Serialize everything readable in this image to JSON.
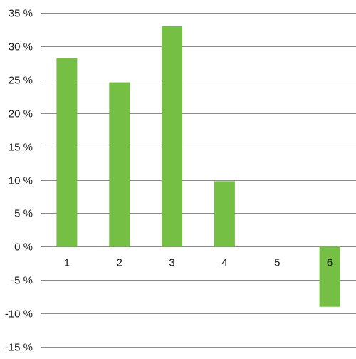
{
  "chart_data": {
    "type": "bar",
    "categories": [
      "1",
      "2",
      "3",
      "4",
      "5",
      "6"
    ],
    "values": [
      28.2,
      24.6,
      33.0,
      9.8,
      0,
      -9.0
    ],
    "title": "",
    "xlabel": "",
    "ylabel": "",
    "ylim": [
      -15,
      35
    ],
    "y_ticks": [
      35,
      30,
      25,
      20,
      15,
      10,
      5,
      0,
      -5,
      -10,
      -15
    ],
    "y_tick_labels": [
      "35 %",
      "30 %",
      "25 %",
      "20 %",
      "15 %",
      "10 %",
      "5 %",
      "0 %",
      "-5 %",
      "-10 %",
      "-15 %"
    ],
    "grid": true,
    "legend": "none",
    "colors": {
      "bar": "#76bf45",
      "grid": "#8c8c8c",
      "text": "#1a1a1a"
    }
  }
}
